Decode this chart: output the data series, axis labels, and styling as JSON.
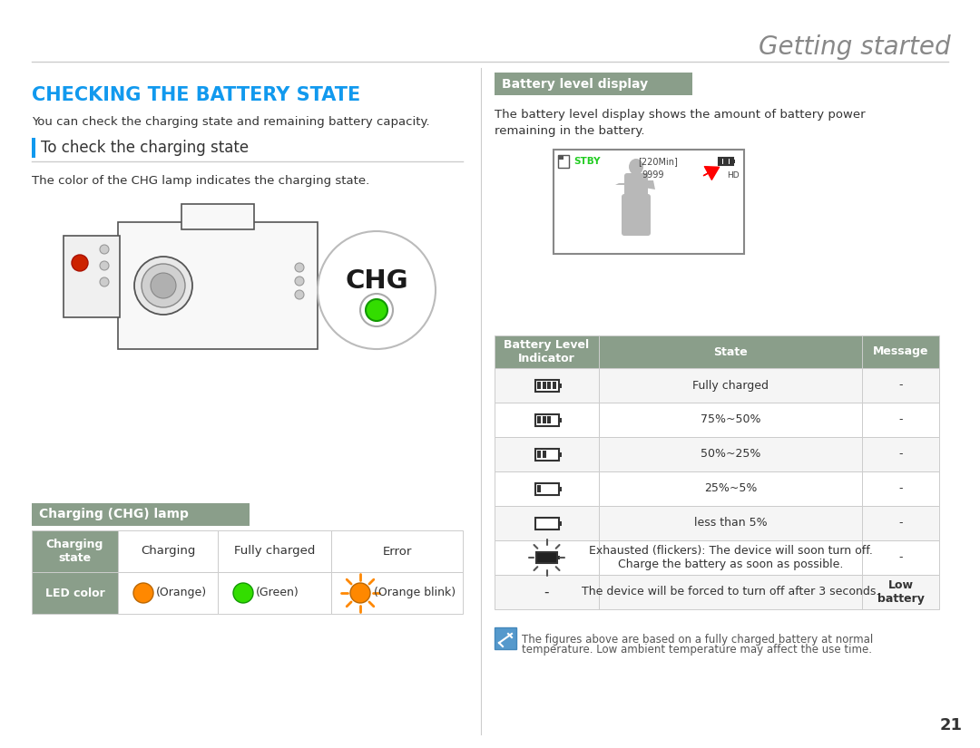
{
  "title": "Getting started",
  "title_color": "#888888",
  "title_fontsize": 20,
  "bg_color": "#ffffff",
  "section1_heading": "CHECKING THE BATTERY STATE",
  "section1_heading_color": "#1199ee",
  "section1_heading_fontsize": 15,
  "section1_desc": "You can check the charging state and remaining battery capacity.",
  "subsection1_heading": "To check the charging state",
  "subsection1_desc": "The color of the CHG lamp indicates the charging state.",
  "section2_heading": "Battery level display",
  "section2_desc1": "The battery level display shows the amount of battery power",
  "section2_desc2": "remaining in the battery.",
  "chg_lamp_heading": "Charging (CHG) lamp",
  "chg_table_headers": [
    "Charging\nstate",
    "Charging",
    "Fully charged",
    "Error"
  ],
  "chg_table_led_labels": [
    "LED color",
    "(Orange)",
    "(Green)",
    "(Orange blink)"
  ],
  "chg_orange_color": "#ff8800",
  "chg_green_color": "#33dd00",
  "battery_table_headers": [
    "Battery Level\nIndicator",
    "State",
    "Message"
  ],
  "battery_table_header_bg": "#8a9e8a",
  "battery_rows_state": [
    "Fully charged",
    "75%~50%",
    "50%~25%",
    "25%~5%",
    "less than 5%",
    "Exhausted (flickers): The device will soon turn off.\nCharge the battery as soon as possible.",
    "The device will be forced to turn off after 3 seconds."
  ],
  "battery_rows_msg": [
    "-",
    "-",
    "-",
    "-",
    "-",
    "-",
    "Low\nbattery"
  ],
  "battery_rows_icon": [
    4,
    3,
    2,
    1,
    0,
    -1,
    -2
  ],
  "note_text1": "The figures above are based on a fully charged battery at normal",
  "note_text2": "temperature. Low ambient temperature may affect the use time.",
  "page_number": "21",
  "line_color": "#cccccc",
  "header_bar_color": "#8a9e8a",
  "table_row_colors": [
    "#f5f5f5",
    "#ffffff",
    "#f5f5f5",
    "#ffffff",
    "#f5f5f5",
    "#ffffff",
    "#f5f5f5"
  ],
  "table_border_color": "#cccccc",
  "text_dark": "#333333",
  "text_mid": "#555555"
}
